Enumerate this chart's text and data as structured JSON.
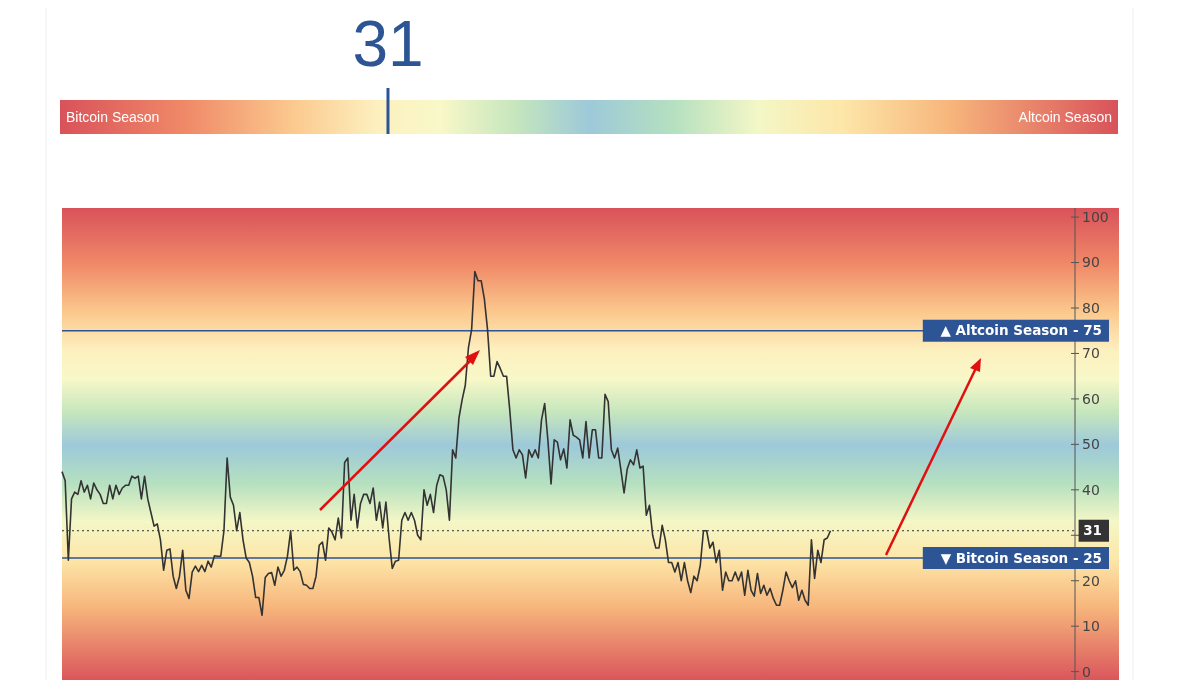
{
  "chart_data": {
    "type": "line",
    "annotations": [
      "31",
      "Bitcoin Season",
      "Altcoin Season"
    ],
    "categories": [
      null,
      null,
      null,
      null,
      null,
      null,
      null,
      null,
      null,
      null,
      null,
      null,
      null,
      null,
      null,
      null,
      null,
      null,
      null,
      null,
      null,
      null,
      null,
      null,
      null,
      null,
      null,
      null,
      null,
      null,
      null,
      null,
      null,
      null,
      null,
      null,
      null,
      null,
      null,
      null,
      null,
      null,
      null,
      null,
      null,
      null,
      null,
      null,
      null,
      null,
      null,
      null,
      null,
      null,
      null,
      null,
      null,
      null,
      null,
      null,
      null,
      null,
      null,
      null,
      null,
      null,
      null,
      null,
      null,
      null,
      null,
      null,
      null,
      null,
      null,
      null,
      null,
      null,
      null,
      null,
      null,
      null,
      null,
      null,
      null,
      null,
      null,
      null,
      null,
      null,
      null,
      null,
      null,
      null,
      null,
      null,
      null,
      null,
      null,
      null,
      null,
      null,
      null,
      null,
      null,
      null,
      null,
      null,
      null,
      null,
      null,
      null,
      null,
      null,
      null,
      null,
      null,
      null,
      null,
      null,
      null,
      null,
      null,
      null,
      null,
      null,
      null,
      null,
      null,
      null,
      null,
      null,
      null,
      null,
      null,
      null,
      null,
      null,
      null,
      null,
      null,
      null,
      null,
      null,
      null,
      null,
      null,
      null,
      null,
      null,
      null,
      null,
      null,
      null,
      null,
      null,
      null,
      null,
      null,
      null,
      null,
      null,
      null,
      null,
      null,
      null,
      null,
      null,
      null,
      null,
      null,
      null,
      null,
      null,
      null,
      null,
      null,
      null,
      null,
      null,
      null,
      null,
      null,
      null,
      null,
      null,
      null,
      null,
      null,
      null,
      null,
      null,
      null,
      null,
      null,
      null,
      null,
      null,
      null,
      null,
      null,
      null,
      null,
      null,
      null,
      null,
      null,
      null,
      null,
      null,
      null,
      null,
      null,
      null,
      null,
      null,
      null,
      null,
      null,
      null,
      null,
      null,
      null,
      null,
      null,
      null,
      null,
      null,
      null,
      null,
      null,
      null,
      null,
      null,
      null,
      null,
      null,
      null,
      null,
      null,
      null,
      null,
      null,
      null,
      null,
      null,
      null,
      null,
      null,
      null,
      null,
      null,
      null,
      null,
      null,
      null,
      null,
      null,
      null,
      null,
      null,
      null,
      null,
      null,
      null,
      null,
      null,
      null,
      null,
      null,
      null,
      null,
      null,
      null,
      null,
      null,
      null,
      null,
      null,
      null,
      null,
      null,
      null,
      null,
      null,
      null,
      null,
      null,
      null,
      null,
      null,
      null,
      null,
      null,
      null,
      null,
      null,
      null,
      null,
      null,
      null,
      null,
      null,
      null,
      null,
      null,
      null,
      null,
      null,
      null,
      null,
      null,
      null,
      null,
      null,
      null,
      null,
      null,
      null,
      null
    ],
    "series": [
      {
        "color": "#333333",
        "values": [
          44,
          42,
          24.5,
          38,
          39.5,
          39,
          42,
          39.5,
          41,
          38,
          41.5,
          40,
          39,
          37,
          37,
          41,
          38,
          41,
          39,
          40.4,
          41,
          41,
          43,
          42.5,
          43,
          38,
          43,
          38,
          35,
          32,
          32.5,
          29,
          22.3,
          26.7,
          27,
          21,
          18.3,
          21,
          26.7,
          17.9,
          16.1,
          21.9,
          23.2,
          22,
          23.4,
          22,
          24.3,
          23,
          25.5,
          25.4,
          25.4,
          31,
          47,
          38.4,
          36.6,
          31,
          35,
          29,
          25,
          24,
          21,
          16.3,
          16.3,
          12.4,
          20.7,
          21.6,
          21.8,
          19,
          23,
          21,
          22.3,
          25.4,
          31,
          22.3,
          23,
          22,
          19.2,
          19,
          18.3,
          18.3,
          21,
          27.8,
          28.5,
          24.5,
          31.6,
          30.7,
          29,
          33.8,
          29.4,
          46,
          47,
          33.3,
          39,
          31.6,
          37,
          39,
          39,
          37,
          40.4,
          33.3,
          37.3,
          31.6,
          37.3,
          29.4,
          22.7,
          24.3,
          24.5,
          33.3,
          35,
          33.3,
          35,
          33.3,
          30,
          29,
          40,
          36.6,
          39,
          35,
          41,
          43.3,
          43,
          40,
          33.3,
          48.8,
          47,
          55.8,
          59.8,
          63,
          71.3,
          75.3,
          88,
          86,
          86,
          82,
          75.3,
          65,
          65,
          68.2,
          66.7,
          65,
          65,
          57.6,
          48.8,
          47,
          48.8,
          47.7,
          42.6,
          48.8,
          47.2,
          48.8,
          47,
          55.4,
          59,
          51,
          41.3,
          51,
          50.5,
          46.6,
          49,
          44.8,
          55.4,
          52,
          51.6,
          51,
          47,
          55,
          47,
          53.2,
          53.2,
          47,
          47,
          61,
          59.4,
          48.8,
          47,
          49.2,
          44.4,
          39.3,
          44.6,
          46.6,
          45.5,
          48.8,
          44.8,
          45.2,
          34.4,
          36.6,
          30,
          27.2,
          27.2,
          32.2,
          29,
          24,
          24,
          21.9,
          24,
          20,
          24,
          20,
          17.4,
          21,
          20,
          23.4,
          31,
          31,
          27.2,
          28.5,
          24,
          26.7,
          17.9,
          21.9,
          20,
          20,
          21.9,
          20,
          21.9,
          16.8,
          22.3,
          17.9,
          16.6,
          21.6,
          17.2,
          19,
          16.8,
          18.3,
          16.1,
          14.6,
          14.6,
          17.9,
          21.9,
          20,
          18.5,
          20,
          15.7,
          17.9,
          15.7,
          14.6,
          29,
          20.5,
          26.7,
          24,
          29,
          29.4,
          31,
          null,
          null,
          null,
          null,
          null,
          null,
          null,
          null,
          null,
          null,
          null,
          null,
          null,
          null,
          null,
          null,
          null,
          null,
          null,
          null,
          null,
          null,
          null,
          null,
          null,
          null,
          null,
          null,
          null,
          null,
          null,
          null,
          null,
          null,
          null,
          null,
          null,
          null,
          null,
          null,
          null,
          null,
          null,
          null,
          null,
          null,
          null,
          null,
          null,
          null,
          null,
          null,
          null,
          null,
          null,
          null,
          null,
          null,
          null,
          null,
          null,
          null,
          null,
          null,
          null,
          null,
          null,
          null,
          null,
          null,
          null,
          null,
          null,
          null,
          null,
          null,
          null
        ]
      }
    ],
    "ylim": [
      -2.5,
      102
    ],
    "yticks": [
      0,
      10,
      20,
      {
        "value": 30,
        "label": null
      },
      40,
      50,
      60,
      70,
      80,
      90,
      100
    ],
    "tick_labels": "y",
    "grid": false,
    "marker": "none",
    "line_style": "solid",
    "ref_lines": [
      {
        "axis": "y",
        "value": 75,
        "label": "▲ Altcoin Season - 75",
        "color": "#2d5596",
        "line_style": "solid"
      },
      {
        "axis": "y",
        "value": 25,
        "label": "▼ Bitcoin Season - 25",
        "color": "#2d5596",
        "line_style": "solid"
      },
      {
        "axis": "y",
        "value": 31,
        "label": "31",
        "color": "#333333",
        "line_style": "dotted"
      }
    ]
  }
}
